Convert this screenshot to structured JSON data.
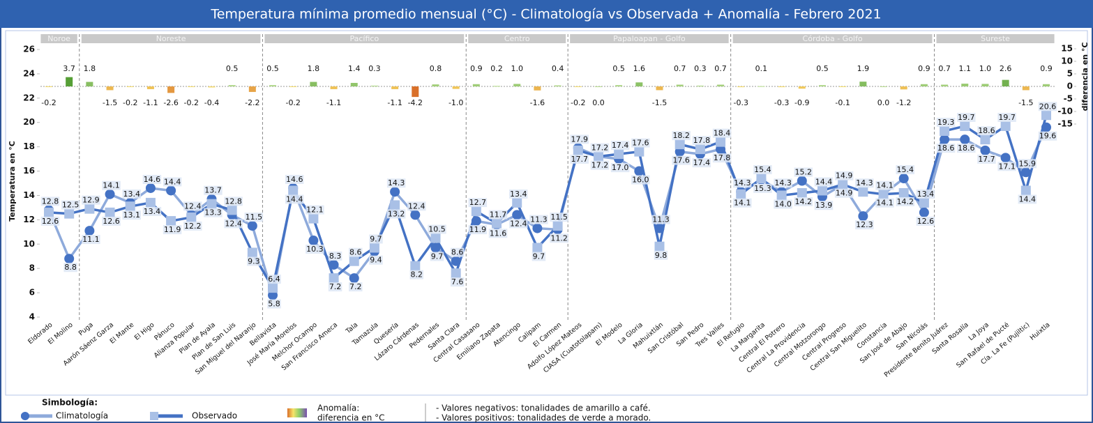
{
  "chart_data": {
    "type": "line",
    "title": "Temperatura mínima promedio mensual (°C)  -   Climatología vs Observada + Anomalía  -  Febrero  2021",
    "y_label": "Temperatura en °C",
    "y2_label": "diferencia en °C",
    "ylim": [
      4,
      26
    ],
    "yticks": [
      4,
      6,
      8,
      10,
      12,
      14,
      16,
      18,
      20,
      22,
      24,
      26
    ],
    "y2lim": [
      -15,
      15
    ],
    "y2ticks": [
      -15,
      -10,
      -5,
      0,
      5,
      10,
      15
    ],
    "regions": [
      {
        "name": "Noroe",
        "stations": [
          "Eldorado",
          "El Molino"
        ]
      },
      {
        "name": "Noreste",
        "stations": [
          "Puga",
          "Aarón Sáenz Garza",
          "El Mante",
          "El Higo",
          "Pánuco",
          "Alianza Popular",
          "Plan de Ayala",
          "Plan de San Luis",
          "San Miguel del Naranjo"
        ]
      },
      {
        "name": "Pacífico",
        "stations": [
          "Bellavista",
          "José María Morelos",
          "Melchor Ocampo",
          "San Francisco Ameca",
          "Tala",
          "Tamazula",
          "Quesería",
          "Lázaro Cárdenas",
          "Pedernales",
          "Santa Clara"
        ]
      },
      {
        "name": "Centro",
        "stations": [
          "Central Casasano",
          "Emiliano Zapata",
          "Atencingo",
          "Calipam",
          "El Carmen"
        ]
      },
      {
        "name": "Papaloapan - Golfo",
        "stations": [
          "Adolfo López Mateos",
          "CIASA (Cuatotolapam)",
          "El Modelo",
          "La Gloria",
          "Mahuixtlán",
          "San Cristóbal",
          "San Pedro",
          "Tres Valles"
        ]
      },
      {
        "name": "Córdoba - Golfo",
        "stations": [
          "El Refugio",
          "La Margarita",
          "Central El Potrero",
          "Central La Providencia",
          "Central Motzorongo",
          "Central Progreso",
          "Central San Miguelito",
          "Constancia",
          "San José de Abajo",
          "San Nicolás"
        ]
      },
      {
        "name": "Sureste",
        "stations": [
          "Presidente Benito Juárez",
          "Santa Rosalía",
          "La Joya",
          "San Rafael de Pucté",
          "Cía. La Fe (Pujiltic)",
          "Huixtla"
        ]
      }
    ],
    "series": [
      {
        "name": "Climatología",
        "type": "line",
        "color": "#8eaadb",
        "marker": "circle",
        "marker_color": "#4472c4",
        "values": [
          12.8,
          8.8,
          11.1,
          14.1,
          13.4,
          14.6,
          14.4,
          12.4,
          13.7,
          12.4,
          11.5,
          5.8,
          14.6,
          10.3,
          8.3,
          7.2,
          9.4,
          14.3,
          12.4,
          9.7,
          8.6,
          11.9,
          11.6,
          12.4,
          11.3,
          11.2,
          17.9,
          17.2,
          17,
          16,
          11.3,
          17.6,
          17.4,
          17.8,
          14.3,
          15.3,
          14.3,
          15.2,
          13.9,
          14.9,
          12.3,
          14.1,
          15.4,
          12.6,
          18.6,
          18.6,
          17.7,
          17.1,
          15.9,
          19.6
        ],
        "value_labels": [
          "12.8",
          "8.8",
          "11.1",
          "14.1",
          "13.4",
          "14.6",
          "14.4",
          "12.4",
          "13.7",
          "12.4",
          "11.5",
          "5.8",
          "14.6",
          "10.3",
          "8.3",
          "7.2",
          "9.4",
          "14.3",
          "12.4",
          "9.7",
          "8.6",
          "11.9",
          "11.6",
          "12.4",
          "11.3",
          "11.2",
          "17.9",
          "17.2",
          "17.0",
          "16.0",
          "11.3",
          "17.6",
          "17.4",
          "17.8",
          "14.3",
          "15.3",
          "14.3",
          "15.2",
          "13.9",
          "14.9",
          "12.3",
          "14.1",
          "15.4",
          "12.6",
          "18.6",
          "18.6",
          "17.7",
          "17.1",
          "15.9",
          "19.6"
        ]
      },
      {
        "name": "Observado",
        "type": "line",
        "color": "#4472c4",
        "marker": "square",
        "marker_color": "#a9c0e6",
        "values": [
          12.6,
          12.5,
          12.9,
          12.6,
          13.1,
          13.4,
          11.9,
          12.2,
          13.3,
          12.8,
          9.3,
          6.4,
          14.4,
          12.1,
          7.2,
          8.6,
          9.7,
          13.2,
          8.2,
          10.5,
          7.6,
          12.7,
          11.7,
          13.4,
          9.7,
          11.5,
          17.7,
          17.2,
          17.4,
          17.6,
          9.8,
          18.2,
          17.8,
          18.4,
          14.1,
          15.4,
          14,
          14.2,
          14.4,
          14.9,
          14.3,
          14.1,
          14.2,
          13.4,
          19.3,
          19.7,
          18.6,
          19.7,
          14.4,
          20.6
        ],
        "value_labels": [
          "12.6",
          "12.5",
          "12.9",
          "12.6",
          "13.1",
          "13.4",
          "11.9",
          "12.2",
          "13.3",
          "12.8",
          "9.3",
          "6.4",
          "14.4",
          "12.1",
          "7.2",
          "8.6",
          "9.7",
          "13.2",
          "8.2",
          "10.5",
          "7.6",
          "12.7",
          "11.7",
          "13.4",
          "9.7",
          "11.5",
          "17.7",
          "17.2",
          "17.4",
          "17.6",
          "9.8",
          "18.2",
          "17.8",
          "18.4",
          "14.1",
          "15.4",
          "14.0",
          "14.2",
          "14.4",
          "14.9",
          "14.3",
          "14.1",
          "14.2",
          "13.4",
          "19.3",
          "19.7",
          "18.6",
          "19.7",
          "14.4",
          "20.6"
        ]
      },
      {
        "name": "Anomalía:",
        "type": "bar",
        "axis": "y2",
        "negative_colors": [
          "#f7e36a",
          "#d9702a"
        ],
        "positive_colors": [
          "#b7dc8c",
          "#4e9a2f"
        ],
        "values": [
          -0.2,
          3.7,
          1.8,
          -1.5,
          -0.2,
          -1.1,
          -2.6,
          -0.2,
          -0.4,
          0.5,
          -2.2,
          0.5,
          -0.2,
          1.8,
          -1.1,
          1.4,
          0.3,
          -1.1,
          -4.2,
          0.8,
          -1,
          0.9,
          0.2,
          1,
          -1.6,
          0.4,
          -0.2,
          0,
          0.5,
          1.6,
          -1.5,
          0.7,
          0.3,
          0.7,
          -0.3,
          0.1,
          -0.3,
          -0.9,
          0.5,
          -0.1,
          1.9,
          0,
          -1.2,
          0.9,
          0.7,
          1.1,
          1,
          2.6,
          -1.5,
          0.9
        ],
        "value_labels": [
          "-0.2",
          "3.7",
          "1.8",
          "-1.5",
          "-0.2",
          "-1.1",
          "-2.6",
          "-0.2",
          "-0.4",
          "0.5",
          "-2.2",
          "0.5",
          "-0.2",
          "1.8",
          "-1.1",
          "1.4",
          "0.3",
          "-1.1",
          "-4.2",
          "0.8",
          "-1.0",
          "0.9",
          "0.2",
          "1.0",
          "-1.6",
          "0.4",
          "-0.2",
          "0.0",
          "0.5",
          "1.6",
          "-1.5",
          "0.7",
          "0.3",
          "0.7",
          "-0.3",
          "0.1",
          "-0.3",
          "-0.9",
          "0.5",
          "-0.1",
          "1.9",
          "0.0",
          "-1.2",
          "0.9",
          "0.7",
          "1.1",
          "1.0",
          "2.6",
          "-1.5",
          "0.9"
        ]
      }
    ],
    "legend_title": "Simbología:",
    "legend_subtitle": "diferencia en °C",
    "notes": [
      "- Valores negativos: tonalidades de amarillo a café.",
      "- Valores positivos: tonalidades de verde a morado."
    ]
  }
}
